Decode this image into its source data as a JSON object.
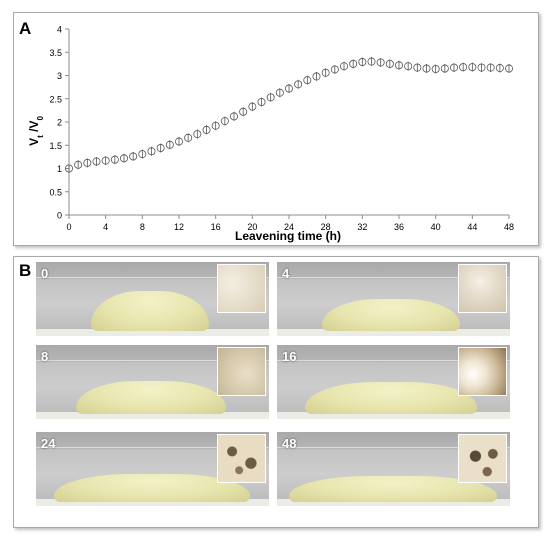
{
  "panel_a": {
    "letter": "A"
  },
  "panel_b": {
    "letter": "B"
  },
  "chart_data": {
    "type": "scatter",
    "xlabel": "Leavening time (h)",
    "ylabel": "Vt /V0",
    "xlim": [
      0,
      48
    ],
    "ylim": [
      0,
      4
    ],
    "x_ticks": [
      0,
      4,
      8,
      12,
      16,
      20,
      24,
      28,
      32,
      36,
      40,
      44,
      48
    ],
    "y_ticks": [
      0,
      0.5,
      1,
      1.5,
      2,
      2.5,
      3,
      3.5,
      4
    ],
    "grid": false,
    "marker": "open-circle-with-errorbar",
    "series": [
      {
        "x": [
          0,
          1,
          2,
          3,
          4,
          5,
          6,
          7,
          8,
          9,
          10,
          11,
          12,
          13,
          14,
          15,
          16,
          17,
          18,
          19,
          20,
          21,
          22,
          23,
          24,
          25,
          26,
          27,
          28,
          29,
          30,
          31,
          32,
          33,
          34,
          35,
          36,
          37,
          38,
          39,
          40,
          41,
          42,
          43,
          44,
          45,
          46,
          47,
          48
        ],
        "values": [
          1.0,
          1.08,
          1.12,
          1.15,
          1.17,
          1.19,
          1.22,
          1.26,
          1.31,
          1.37,
          1.44,
          1.51,
          1.58,
          1.66,
          1.74,
          1.83,
          1.92,
          2.02,
          2.12,
          2.22,
          2.33,
          2.43,
          2.53,
          2.63,
          2.72,
          2.81,
          2.9,
          2.98,
          3.06,
          3.13,
          3.2,
          3.25,
          3.29,
          3.3,
          3.28,
          3.25,
          3.22,
          3.2,
          3.17,
          3.15,
          3.14,
          3.15,
          3.17,
          3.18,
          3.18,
          3.17,
          3.17,
          3.16,
          3.15
        ]
      }
    ]
  },
  "photos": [
    {
      "label": "0"
    },
    {
      "label": "4"
    },
    {
      "label": "8"
    },
    {
      "label": "16"
    },
    {
      "label": "24"
    },
    {
      "label": "48"
    }
  ]
}
